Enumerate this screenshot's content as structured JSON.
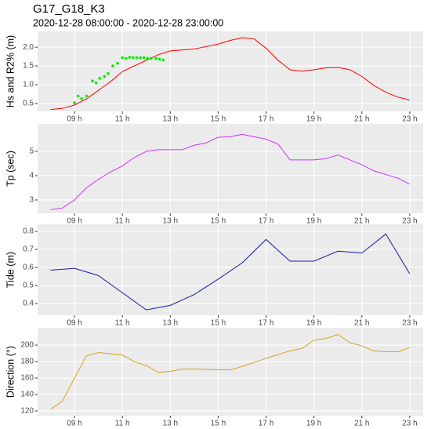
{
  "title": "G17_G18_K3",
  "subtitle": "2020-12-28 08:00:00 - 2020-12-28 23:00:00",
  "chart_data": [
    {
      "type": "line",
      "ylabel": "Hs and R2% (m)",
      "grid": true,
      "xlim": [
        7.46,
        23.56
      ],
      "xticks": [
        {
          "value": 9,
          "label": "09 h"
        },
        {
          "value": 11,
          "label": "11 h"
        },
        {
          "value": 13,
          "label": "13 h"
        },
        {
          "value": 15,
          "label": "15 h"
        },
        {
          "value": 17,
          "label": "17 h"
        },
        {
          "value": 19,
          "label": "19 h"
        },
        {
          "value": 21,
          "label": "21 h"
        },
        {
          "value": 23,
          "label": "23 h"
        }
      ],
      "ylim": [
        0.29,
        2.42
      ],
      "yticks": [
        0.5,
        {
          "value": 1.0,
          "label": "1.0"
        },
        1.5,
        {
          "value": 2.0,
          "label": "2.0"
        }
      ],
      "series": [
        {
          "color": "#ff0000",
          "style": "line",
          "x": [
            8,
            8.5,
            9,
            9.5,
            10,
            10.5,
            11,
            12,
            12.5,
            13,
            14,
            15,
            15.5,
            16,
            16.5,
            17,
            17.5,
            18,
            18.5,
            19,
            19.5,
            20,
            20.5,
            21,
            21.5,
            22,
            22.5,
            23
          ],
          "values": [
            0.34,
            0.37,
            0.46,
            0.62,
            0.85,
            1.08,
            1.35,
            1.65,
            1.8,
            1.9,
            1.95,
            2.08,
            2.18,
            2.25,
            2.22,
            1.97,
            1.65,
            1.4,
            1.36,
            1.4,
            1.45,
            1.46,
            1.4,
            1.22,
            0.98,
            0.8,
            0.67,
            0.59
          ]
        },
        {
          "color": "#00ee00",
          "style": "points",
          "x": [
            9,
            9.15,
            9.3,
            9.5,
            9.75,
            9.9,
            10.05,
            10.25,
            10.4,
            10.6,
            10.8,
            11,
            11.15,
            11.3,
            11.45,
            11.6,
            11.75,
            11.9,
            12.05,
            12.2,
            12.4,
            12.55,
            12.7
          ],
          "values": [
            0.52,
            0.7,
            0.63,
            0.7,
            1.1,
            1.05,
            1.17,
            1.22,
            1.3,
            1.5,
            1.57,
            1.72,
            1.7,
            1.73,
            1.72,
            1.72,
            1.72,
            1.72,
            1.7,
            1.7,
            1.7,
            1.68,
            1.66
          ]
        }
      ]
    },
    {
      "type": "line",
      "ylabel": "Tp (sec)",
      "grid": true,
      "xlim": [
        7.46,
        23.56
      ],
      "xticks": [
        {
          "value": 9,
          "label": "09 h"
        },
        {
          "value": 11,
          "label": "11 h"
        },
        {
          "value": 13,
          "label": "13 h"
        },
        {
          "value": 15,
          "label": "15 h"
        },
        {
          "value": 17,
          "label": "17 h"
        },
        {
          "value": 19,
          "label": "19 h"
        },
        {
          "value": 21,
          "label": "21 h"
        },
        {
          "value": 23,
          "label": "23 h"
        }
      ],
      "ylim": [
        2.45,
        6.13
      ],
      "yticks": [
        3,
        4,
        5
      ],
      "series": [
        {
          "color": "#cc33ff",
          "style": "line",
          "x": [
            8,
            8.5,
            9,
            9.5,
            10,
            10.5,
            11,
            11.5,
            12,
            12.5,
            13,
            13.5,
            14,
            14.5,
            15,
            15.5,
            16,
            16.5,
            17,
            17.5,
            18,
            18.5,
            19,
            19.5,
            20,
            20.5,
            21,
            21.5,
            22,
            22.5,
            23
          ],
          "values": [
            2.6,
            2.67,
            3.0,
            3.5,
            3.85,
            4.15,
            4.4,
            4.75,
            5.0,
            5.07,
            5.07,
            5.07,
            5.25,
            5.35,
            5.58,
            5.6,
            5.7,
            5.6,
            5.5,
            5.3,
            4.65,
            4.65,
            4.65,
            4.7,
            4.85,
            4.65,
            4.45,
            4.2,
            4.05,
            3.9,
            3.65
          ]
        }
      ]
    },
    {
      "type": "line",
      "ylabel": "Tide (m)",
      "grid": true,
      "xlim": [
        7.46,
        23.56
      ],
      "xticks": [
        {
          "value": 9,
          "label": "09 h"
        },
        {
          "value": 11,
          "label": "11 h"
        },
        {
          "value": 13,
          "label": "13 h"
        },
        {
          "value": 15,
          "label": "15 h"
        },
        {
          "value": 17,
          "label": "17 h"
        },
        {
          "value": 19,
          "label": "19 h"
        },
        {
          "value": 21,
          "label": "21 h"
        },
        {
          "value": 23,
          "label": "23 h"
        }
      ],
      "ylim": [
        0.335,
        0.839
      ],
      "yticks": [
        0.4,
        0.5,
        0.6,
        0.7,
        0.8
      ],
      "series": [
        {
          "color": "#1a1aa8",
          "style": "line",
          "x": [
            8,
            9,
            10,
            11,
            12,
            13,
            14,
            15,
            16,
            17,
            18,
            19,
            20,
            21,
            22,
            23
          ],
          "values": [
            0.585,
            0.595,
            0.555,
            0.46,
            0.365,
            0.39,
            0.45,
            0.535,
            0.625,
            0.755,
            0.635,
            0.635,
            0.69,
            0.68,
            0.785,
            0.565
          ]
        }
      ]
    },
    {
      "type": "line",
      "ylabel": "Direction (°)",
      "grid": true,
      "xlim": [
        7.46,
        23.56
      ],
      "xticks": [
        {
          "value": 9,
          "label": "09 h"
        },
        {
          "value": 11,
          "label": "11 h"
        },
        {
          "value": 13,
          "label": "13 h"
        },
        {
          "value": 15,
          "label": "15 h"
        },
        {
          "value": 17,
          "label": "17 h"
        },
        {
          "value": 19,
          "label": "19 h"
        },
        {
          "value": 21,
          "label": "21 h"
        },
        {
          "value": 23,
          "label": "23 h"
        }
      ],
      "ylim": [
        114.3,
        221
      ],
      "yticks": [
        120,
        140,
        160,
        180,
        200
      ],
      "series": [
        {
          "color": "#d4a520",
          "style": "line",
          "x": [
            8,
            8.5,
            9,
            9.5,
            10,
            11,
            11.5,
            12,
            12.5,
            13,
            13.5,
            14,
            15,
            15.5,
            16,
            17,
            18,
            18.5,
            19,
            19.5,
            20,
            20.5,
            21,
            21.5,
            22,
            22.5,
            23
          ],
          "values": [
            122,
            132,
            160,
            187,
            191,
            188,
            180,
            175,
            167,
            168,
            171,
            171,
            170,
            170,
            174,
            184,
            193,
            196,
            206,
            208,
            213,
            203,
            199,
            193,
            192,
            192,
            197
          ]
        }
      ]
    }
  ]
}
